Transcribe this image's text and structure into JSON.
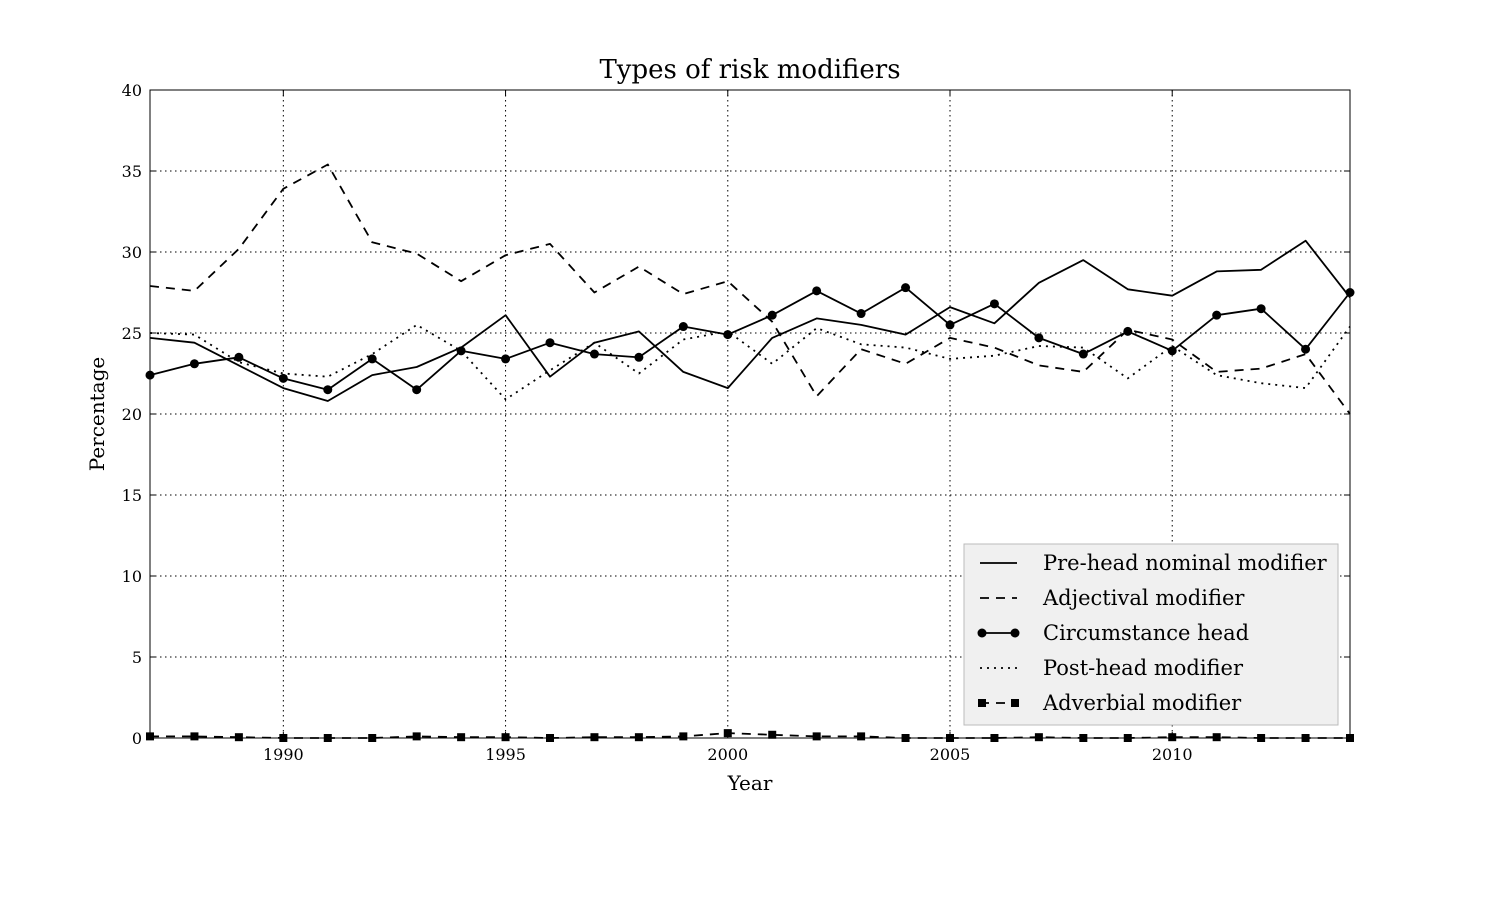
{
  "chart_data": {
    "type": "line",
    "title": "Types of risk modifiers",
    "xlabel": "Year",
    "ylabel": "Percentage",
    "xlim": [
      1987,
      2014
    ],
    "ylim": [
      0,
      40
    ],
    "xticks": [
      1990,
      1995,
      2000,
      2005,
      2010
    ],
    "yticks": [
      0,
      5,
      10,
      15,
      20,
      25,
      30,
      35,
      40
    ],
    "grid": true,
    "legend_position": "lower-right",
    "x": [
      1987,
      1988,
      1989,
      1990,
      1991,
      1992,
      1993,
      1994,
      1995,
      1996,
      1997,
      1998,
      1999,
      2000,
      2001,
      2002,
      2003,
      2004,
      2005,
      2006,
      2007,
      2008,
      2009,
      2010,
      2011,
      2012,
      2013,
      2014
    ],
    "series": [
      {
        "name": "Pre-head nominal modifier",
        "style": "solid",
        "marker": "none",
        "values": [
          24.7,
          24.4,
          23.0,
          21.6,
          20.8,
          22.4,
          22.9,
          24.1,
          26.1,
          22.3,
          24.4,
          25.1,
          22.6,
          21.6,
          24.7,
          25.9,
          25.5,
          24.9,
          26.6,
          25.6,
          28.1,
          29.5,
          27.7,
          27.3,
          28.8,
          28.9,
          30.7,
          27.2
        ]
      },
      {
        "name": "Adjectival modifier",
        "style": "dashed",
        "marker": "none",
        "values": [
          27.9,
          27.6,
          30.2,
          33.9,
          35.4,
          30.6,
          29.9,
          28.2,
          29.8,
          30.5,
          27.5,
          29.1,
          27.4,
          28.2,
          25.7,
          21.1,
          24.0,
          23.1,
          24.7,
          24.1,
          23.0,
          22.6,
          25.2,
          24.6,
          22.6,
          22.8,
          23.7,
          20.0
        ]
      },
      {
        "name": "Circumstance head",
        "style": "solid",
        "marker": "circle",
        "values": [
          22.4,
          23.1,
          23.5,
          22.2,
          21.5,
          23.4,
          21.5,
          23.9,
          23.4,
          24.4,
          23.7,
          23.5,
          25.4,
          24.9,
          26.1,
          27.6,
          26.2,
          27.8,
          25.5,
          26.8,
          24.7,
          23.7,
          25.1,
          23.9,
          26.1,
          26.5,
          24.0,
          27.5
        ]
      },
      {
        "name": "Post-head modifier",
        "style": "dotted",
        "marker": "none",
        "values": [
          25.0,
          24.9,
          23.2,
          22.5,
          22.3,
          23.7,
          25.5,
          23.9,
          20.9,
          22.7,
          24.4,
          22.5,
          24.6,
          25.1,
          23.1,
          25.3,
          24.3,
          24.1,
          23.4,
          23.6,
          24.2,
          24.1,
          22.2,
          24.2,
          22.4,
          21.9,
          21.6,
          25.4
        ]
      },
      {
        "name": "Adverbial modifier",
        "style": "dashed",
        "marker": "square",
        "values": [
          0.1,
          0.1,
          0.05,
          0.0,
          0.0,
          0.0,
          0.1,
          0.05,
          0.05,
          0.0,
          0.05,
          0.05,
          0.1,
          0.3,
          0.2,
          0.1,
          0.1,
          0.0,
          0.0,
          0.0,
          0.05,
          0.0,
          0.0,
          0.05,
          0.05,
          0.0,
          0.0,
          0.0
        ]
      }
    ]
  }
}
